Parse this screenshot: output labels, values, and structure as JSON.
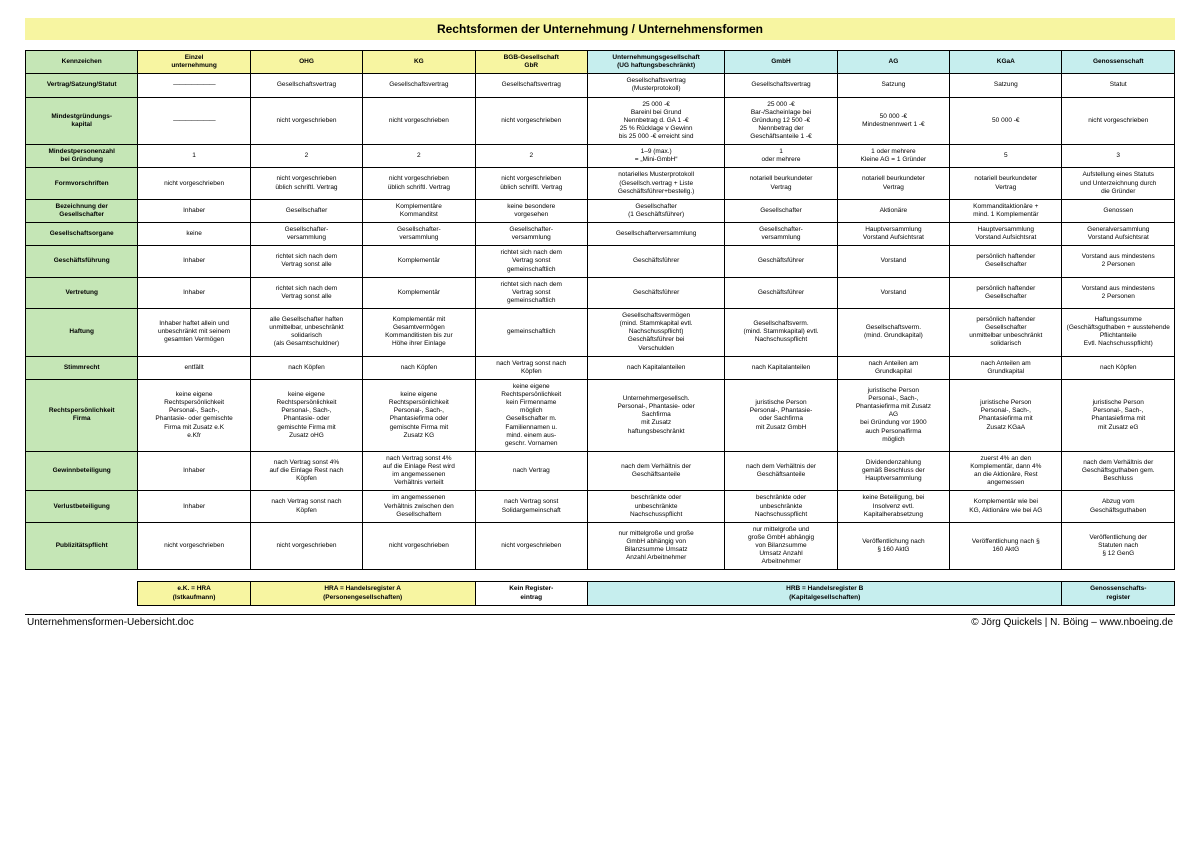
{
  "colors": {
    "title_bg": "#f7f5a1",
    "header_green": "#c5e6b6",
    "header_yellow": "#f7f5a1",
    "header_cyan": "#c6eeee",
    "cell_white": "#ffffff"
  },
  "title": "Rechtsformen der Unternehmung / Unternehmensformen",
  "columns": [
    {
      "key": "label",
      "text": "Kennzeichen",
      "bg": "header_green",
      "width": "9%"
    },
    {
      "key": "einzel",
      "text": "Einzel\nunternehmung",
      "bg": "header_yellow",
      "width": "9%"
    },
    {
      "key": "ohg",
      "text": "OHG",
      "bg": "header_yellow",
      "width": "9%"
    },
    {
      "key": "kg",
      "text": "KG",
      "bg": "header_yellow",
      "width": "9%"
    },
    {
      "key": "gbr",
      "text": "BGB-Gesellschaft\nGbR",
      "bg": "header_yellow",
      "width": "9%"
    },
    {
      "key": "ug",
      "text": "Unternehmungsgesellschaft\n(UG haftungsbeschränkt)",
      "bg": "header_cyan",
      "width": "11%"
    },
    {
      "key": "gmbh",
      "text": "GmbH",
      "bg": "header_cyan",
      "width": "9%"
    },
    {
      "key": "ag",
      "text": "AG",
      "bg": "header_cyan",
      "width": "9%"
    },
    {
      "key": "kgaa",
      "text": "KGaA",
      "bg": "header_cyan",
      "width": "9%"
    },
    {
      "key": "genossen",
      "text": "Genossenschaft",
      "bg": "header_cyan",
      "width": "9%"
    }
  ],
  "rows": [
    {
      "label": "Vertrag/Satzung/Statut",
      "cells": [
        "———————",
        "Gesellschaftsvertrag",
        "Gesellschaftsvertrag",
        "Gesellschaftsvertrag",
        "Gesellschaftsvertrag\n(Musterprotokoll)",
        "Gesellschaftsvertrag",
        "Satzung",
        "Satzung",
        "Statut"
      ]
    },
    {
      "label": "Mindestgründungs-\nkapital",
      "cells": [
        "———————",
        "nicht vorgeschrieben",
        "nicht vorgeschrieben",
        "nicht vorgeschrieben",
        "25 000 -€\nBareinl bei Grund\nNennbetrag d. GA 1 -€\n25 % Rücklage v Gewinn\nbis 25 000 -€ erreicht sind",
        "25 000 -€\nBar-/Sacheinlage bei\nGründung 12 500 -€\nNennbetrag der\nGeschäftsanteile 1 -€",
        "50 000 -€\nMindestnennwert 1 -€",
        "50 000 -€",
        "nicht vorgeschrieben"
      ]
    },
    {
      "label": "Mindestpersonenzahl\nbei Gründung",
      "cells": [
        "1",
        "2",
        "2",
        "2",
        "1–9 (max.)\n= „Mini-GmbH“",
        "1\noder mehrere",
        "1 oder mehrere\nKleine AG = 1 Gründer",
        "5",
        "3"
      ]
    },
    {
      "label": "Formvorschriften",
      "cells": [
        "nicht vorgeschrieben",
        "nicht vorgeschrieben\nüblich schriftl. Vertrag",
        "nicht vorgeschrieben\nüblich schriftl. Vertrag",
        "nicht vorgeschrieben\nüblich schriftl. Vertrag",
        "notarielles Musterprotokoll\n(Gesellsch.vertrag + Liste\nGeschäftsführer+bestellg.)",
        "notariell beurkundeter\nVertrag",
        "notariell beurkundeter\nVertrag",
        "notariell beurkundeter\nVertrag",
        "Aufstellung eines Statuts\nund Unterzeichnung durch\ndie Gründer"
      ]
    },
    {
      "label": "Bezeichnung der\nGesellschafter",
      "cells": [
        "Inhaber",
        "Gesellschafter",
        "Komplementäre\nKommanditst",
        "keine besondere\nvorgesehen",
        "Gesellschafter\n(1 Geschäftsführer)",
        "Gesellschafter",
        "Aktionäre",
        "Kommanditaktionäre +\nmind. 1 Komplementär",
        "Genossen"
      ]
    },
    {
      "label": "Gesellschaftsorgane",
      "cells": [
        "keine",
        "Gesellschafter-\nversammlung",
        "Gesellschafter-\nversammlung",
        "Gesellschafter-\nversammlung",
        "Gesellschafterversammlung",
        "Gesellschafter-\nversammlung",
        "Hauptversammlung\nVorstand Aufsichtsrat",
        "Hauptversammlung\nVorstand Aufsichtsrat",
        "Generalversammlung\nVorstand Aufsichtsrat"
      ]
    },
    {
      "label": "Geschäftsführung",
      "cells": [
        "Inhaber",
        "richtet sich nach dem\nVertrag sonst alle",
        "Komplementär",
        "richtet sich nach dem\nVertrag sonst\ngemeinschaftlich",
        "Geschäftsführer",
        "Geschäftsführer",
        "Vorstand",
        "persönlich haftender\nGesellschafter",
        "Vorstand aus mindestens\n2 Personen"
      ]
    },
    {
      "label": "Vertretung",
      "cells": [
        "Inhaber",
        "richtet sich nach dem\nVertrag sonst alle",
        "Komplementär",
        "richtet sich nach dem\nVertrag sonst\ngemeinschaftlich",
        "Geschäftsführer",
        "Geschäftsführer",
        "Vorstand",
        "persönlich haftender\nGesellschafter",
        "Vorstand aus mindestens\n2 Personen"
      ]
    },
    {
      "label": "Haftung",
      "cells": [
        "Inhaber haftet allein und\nunbeschränkt mit seinem\ngesamten Vermögen",
        "alle Gesellschafter haften\nunmittelbar, unbeschränkt\nsolidarisch\n(als Gesamtschuldner)",
        "Komplementär mit\nGesamtvermögen\nKommanditisten bis zur\nHöhe ihrer Einlage",
        "gemeinschaftlich",
        "Gesellschaftsvermögen\n(mind. Stammkapital evtl.\nNachschusspflicht)\nGeschäftsführer bei\nVerschulden",
        "Gesellschaftsverm.\n(mind. Stammkapital) evtl.\nNachschusspflicht",
        "Gesellschaftsverm.\n(mind. Grundkapital)",
        "persönlich haftender\nGesellschafter\nunmittelbar unbeschränkt\nsolidarisch",
        "Haftungssumme\n(Geschäftsguthaben + ausstehende\nPflichtanteile\nEvtl. Nachschusspflicht)"
      ]
    },
    {
      "label": "Stimmrecht",
      "cells": [
        "entfällt",
        "nach Köpfen",
        "nach Köpfen",
        "nach Vertrag sonst nach\nKöpfen",
        "nach Kapitalanteilen",
        "nach Kapitalanteilen",
        "nach Anteilen am\nGrundkapital",
        "nach Anteilen am\nGrundkapital",
        "nach Köpfen"
      ]
    },
    {
      "label": "Rechtspersönlichkeit\nFirma",
      "cells": [
        "keine eigene\nRechtspersönlichkeit\nPersonal-, Sach-,\nPhantasie- oder gemischte\nFirma mit Zusatz e.K\ne.Kfr",
        "keine eigene\nRechtspersönlichkeit\nPersonal-, Sach-,\nPhantasie- oder\ngemischte Firma mit\nZusatz oHG",
        "keine eigene\nRechtspersönlichkeit\nPersonal-, Sach-,\nPhantasiefirma oder\ngemischte Firma mit\nZusatz KG",
        "keine eigene\nRechtspersönlichkeit\nkein Firmenname\nmöglich\nGesellschafter m.\nFamiliennamen u.\nmind. einem aus-\ngeschr. Vornamen",
        "Unternehmergesellsch.\nPersonal-, Phantasie- oder\nSachfirma\nmit Zusatz\nhaftungsbeschränkt",
        "juristische Person\nPersonal-, Phantasie-\noder Sachfirma\nmit Zusatz GmbH",
        "juristische Person\nPersonal-, Sach-,\nPhantasiefirma mit Zusatz\nAG\nbei Gründung vor 1900\nauch Personalfirma\nmöglich",
        "juristische Person\nPersonal-, Sach-,\nPhantasiefirma mit\nZusatz KGaA",
        "juristische Person\nPersonal-, Sach-,\nPhantasiefirma mit\nmit Zusatz eG"
      ]
    },
    {
      "label": "Gewinnbeteiligung",
      "cells": [
        "Inhaber",
        "nach Vertrag sonst 4%\nauf die Einlage Rest nach\nKöpfen",
        "nach Vertrag sonst 4%\nauf die Einlage Rest wird\nim angemessenen\nVerhältnis verteilt",
        "nach Vertrag",
        "nach dem Verhältnis der\nGeschäftsanteile",
        "nach dem Verhältnis der\nGeschäftsanteile",
        "Dividendenzahlung\ngemäß Beschluss der\nHauptversammlung",
        "zuerst 4% an den\nKomplementär, dann 4%\nan die Aktionäre, Rest\nangemessen",
        "nach dem Verhältnis der\nGeschäftsguthaben gem.\nBeschluss"
      ]
    },
    {
      "label": "Verlustbeteiligung",
      "cells": [
        "Inhaber",
        "nach Vertrag sonst nach\nKöpfen",
        "im angemessenen\nVerhältnis zwischen den\nGesellschaftern",
        "nach Vertrag sonst\nSolidargemeinschaft",
        "beschränkte oder\nunbeschränkte\nNachschusspflicht",
        "beschränkte oder\nunbeschränkte\nNachschusspflicht",
        "keine Beteiligung, bei\nInsolvenz evtl.\nKapitalherabsetzung",
        "Komplementär wie bei\nKG, Aktionäre wie bei AG",
        "Abzug vom\nGeschäftsguthaben"
      ]
    },
    {
      "label": "Publizitätspflicht",
      "cells": [
        "nicht vorgeschrieben",
        "nicht vorgeschrieben",
        "nicht vorgeschrieben",
        "nicht vorgeschrieben",
        "nur mittelgroße und große\nGmbH abhängig von\nBilanzsumme Umsatz\nAnzahl Arbeitnehmer",
        "nur mittelgroße und\ngroße GmbH abhängig\nvon Bilanzsumme\nUmsatz Anzahl\nArbeitnehmer",
        "Veröffentlichung nach\n§ 160 AktG",
        "Veröffentlichung nach §\n160 AktG",
        "Veröffentlichung der\nStatuten nach\n§ 12 GenG"
      ]
    }
  ],
  "register_row": {
    "ek": "e.K. = HRA\n(Istkaufmann)",
    "hra": "HRA = Handelsregister A\n(Personengesellschaften)",
    "none": "Kein Register-\neintrag",
    "hrb": "HRB = Handelsregister B\n(Kapitalgesellschaften)",
    "gen": "Genossenschafts-\nregister"
  },
  "footer": {
    "left": "Unternehmensformen-Uebersicht.doc",
    "right": "© Jörg Quickels | N. Böing – www.nboeing.de"
  }
}
